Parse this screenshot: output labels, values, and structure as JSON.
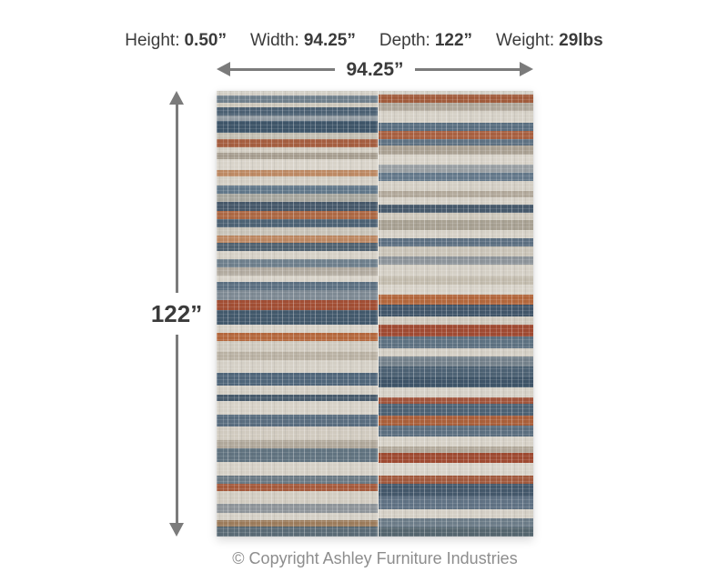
{
  "spec_header": {
    "items": [
      {
        "label": "Height:",
        "value": "0.50”"
      },
      {
        "label": "Width:",
        "value": "94.25”"
      },
      {
        "label": "Depth:",
        "value": "122”"
      },
      {
        "label": "Weight:",
        "value": "29lbs"
      }
    ]
  },
  "dimensions": {
    "width_label": "94.25”",
    "height_label": "122”"
  },
  "footer": {
    "copyright": "© Copyright Ashley Furniture Industries"
  },
  "colors": {
    "text": "#3b3b3b",
    "arrow": "#7b7b7b",
    "copyright_text": "#8d8d8d",
    "background": "#ffffff",
    "rug_cream": "#d6d1c7",
    "rug_slate_blue": "#47596b",
    "rug_rust": "#a95f3c",
    "rug_taupe": "#aba293"
  },
  "rug": {
    "left_stripes": [
      [
        4,
        "#d2cec5"
      ],
      [
        7,
        "#70808c"
      ],
      [
        4,
        "#ccc7bb"
      ],
      [
        8,
        "#4c6173"
      ],
      [
        5,
        "#939ca3"
      ],
      [
        11,
        "#3e5569"
      ],
      [
        6,
        "#c3beb2"
      ],
      [
        8,
        "#a55e40"
      ],
      [
        5,
        "#d2cdc2"
      ],
      [
        6,
        "#a79e90"
      ],
      [
        11,
        "#d8d3c9"
      ],
      [
        6,
        "#bd8a64"
      ],
      [
        8,
        "#d3cec4"
      ],
      [
        8,
        "#62788a"
      ],
      [
        8,
        "#a8a79f"
      ],
      [
        8,
        "#46586a"
      ],
      [
        8,
        "#ad6843"
      ],
      [
        8,
        "#4d6274"
      ],
      [
        7,
        "#c8c3b8"
      ],
      [
        7,
        "#bd8862"
      ],
      [
        8,
        "#4f6170"
      ],
      [
        8,
        "#d5d0c6"
      ],
      [
        7,
        "#6e7f8c"
      ],
      [
        8,
        "#b2aba0"
      ],
      [
        6,
        "#d7d2c8"
      ],
      [
        8,
        "#5c7082"
      ],
      [
        9,
        "#7e8a94"
      ],
      [
        10,
        "#a24e34"
      ],
      [
        13,
        "#43596c"
      ],
      [
        8,
        "#d6d1c7"
      ],
      [
        8,
        "#b5683d"
      ],
      [
        10,
        "#cfc9be"
      ],
      [
        8,
        "#bab2a4"
      ],
      [
        12,
        "#d4cfc5"
      ],
      [
        12,
        "#50667a"
      ],
      [
        8,
        "#d3cec4"
      ],
      [
        6,
        "#495c6d"
      ],
      [
        13,
        "#d6d1c7"
      ],
      [
        11,
        "#596d7f"
      ],
      [
        13,
        "#d0cabf"
      ],
      [
        8,
        "#b0a89b"
      ],
      [
        13,
        "#617380"
      ],
      [
        13,
        "#d5d0c6"
      ],
      [
        7,
        "#6b7a85"
      ],
      [
        7,
        "#a65a3c"
      ],
      [
        12,
        "#d2ccc1"
      ],
      [
        9,
        "#8f959a"
      ],
      [
        7,
        "#d4cfc5"
      ],
      [
        6,
        "#9c7c5c"
      ],
      [
        9,
        "#5a6b76"
      ]
    ],
    "right_stripes": [
      [
        4,
        "#d3cfc6"
      ],
      [
        8,
        "#a25c3c"
      ],
      [
        8,
        "#b0a89b"
      ],
      [
        12,
        "#d5d0c6"
      ],
      [
        8,
        "#5a6f81"
      ],
      [
        8,
        "#a96040"
      ],
      [
        7,
        "#5f7283"
      ],
      [
        9,
        "#aaa193"
      ],
      [
        10,
        "#d8d3c9"
      ],
      [
        8,
        "#9aa0a4"
      ],
      [
        8,
        "#64798b"
      ],
      [
        10,
        "#d3cec4"
      ],
      [
        7,
        "#b2a99b"
      ],
      [
        7,
        "#d6d1c7"
      ],
      [
        8,
        "#47596b"
      ],
      [
        8,
        "#cdc7bb"
      ],
      [
        10,
        "#a8a193"
      ],
      [
        8,
        "#d5d0c6"
      ],
      [
        8,
        "#5d7082"
      ],
      [
        10,
        "#cac4b8"
      ],
      [
        8,
        "#8d949a"
      ],
      [
        12,
        "#d4cfc5"
      ],
      [
        8,
        "#c3bcae"
      ],
      [
        10,
        "#d7d2c8"
      ],
      [
        10,
        "#b3673c"
      ],
      [
        12,
        "#42566a"
      ],
      [
        8,
        "#cfc9be"
      ],
      [
        12,
        "#a04a32"
      ],
      [
        12,
        "#5e7282"
      ],
      [
        8,
        "#d3cec4"
      ],
      [
        10,
        "#75828c"
      ],
      [
        11,
        "#4d6274"
      ],
      [
        10,
        "#3e5468"
      ],
      [
        10,
        "#d5d0c6"
      ],
      [
        7,
        "#a2553c"
      ],
      [
        12,
        "#4d6274"
      ],
      [
        10,
        "#aa5f3a"
      ],
      [
        11,
        "#5c6f80"
      ],
      [
        10,
        "#d6d1c7"
      ],
      [
        6,
        "#b2a99b"
      ],
      [
        10,
        "#9f4a31"
      ],
      [
        13,
        "#d8d3c9"
      ],
      [
        8,
        "#a25a3e"
      ],
      [
        13,
        "#44586b"
      ],
      [
        13,
        "#607284"
      ],
      [
        9,
        "#d4cfc5"
      ],
      [
        9,
        "#6d7d89"
      ],
      [
        9,
        "#55666f"
      ]
    ]
  }
}
